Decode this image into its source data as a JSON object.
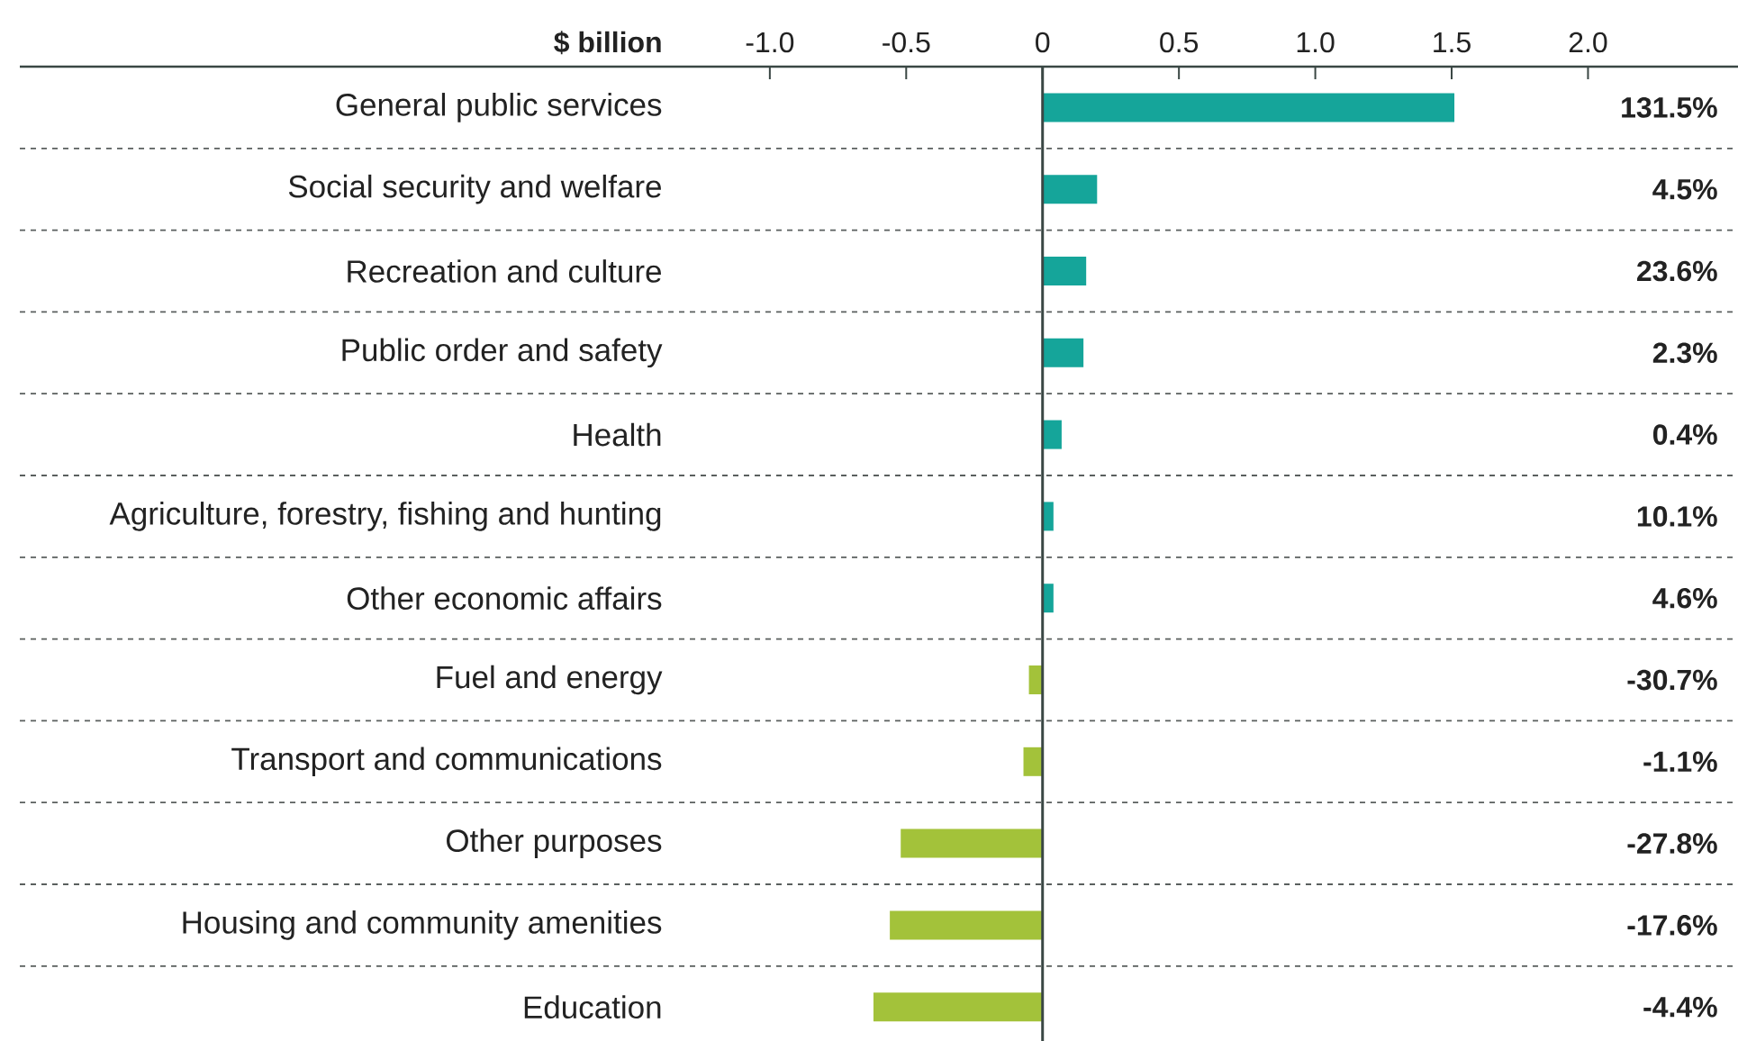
{
  "chart_data": {
    "type": "bar",
    "orientation": "horizontal",
    "xlabel": "$ billion",
    "categories": [
      "General public services",
      "Social security and welfare",
      "Recreation and culture",
      "Public order and safety",
      "Health",
      "Agriculture, forestry, fishing and hunting",
      "Other economic affairs",
      "Fuel and energy",
      "Transport and communications",
      "Other purposes",
      "Housing and community amenities",
      "Education"
    ],
    "values": [
      1.51,
      0.2,
      0.16,
      0.15,
      0.07,
      0.04,
      0.04,
      -0.05,
      -0.07,
      -0.52,
      -0.56,
      -0.62
    ],
    "colors": [
      "#15a59a",
      "#15a59a",
      "#15a59a",
      "#15a59a",
      "#15a59a",
      "#15a59a",
      "#15a59a",
      "#a3c23a",
      "#a3c23a",
      "#a3c23a",
      "#a3c23a",
      "#a3c23a"
    ],
    "annotations": [
      "131.5%",
      "4.5%",
      "23.6%",
      "2.3%",
      "0.4%",
      "10.1%",
      "4.6%",
      "-30.7%",
      "-1.1%",
      "-27.8%",
      "-17.6%",
      "-4.4%"
    ],
    "xlim": [
      -3.75,
      2.55
    ],
    "xticks": [
      {
        "value": -1,
        "label": "-1.0"
      },
      {
        "value": -0.5,
        "label": "-0.5"
      },
      0,
      0.5,
      {
        "value": 1,
        "label": "1.0"
      },
      1.5,
      {
        "value": 2,
        "label": "2.0"
      }
    ],
    "grid": "y"
  }
}
